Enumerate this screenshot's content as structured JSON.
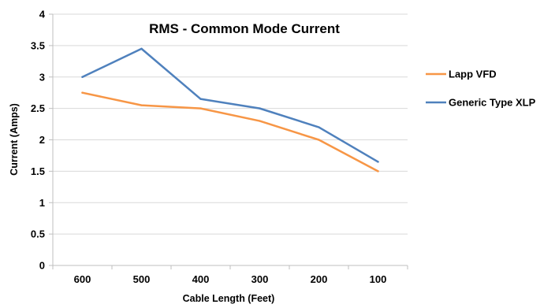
{
  "chart_data": {
    "type": "line",
    "title": "RMS - Common Mode Current",
    "xlabel": "Cable Length (Feet)",
    "ylabel": "Current (Amps)",
    "categories": [
      "600",
      "500",
      "400",
      "300",
      "200",
      "100"
    ],
    "ylim": [
      0,
      4
    ],
    "yticks": [
      "0",
      "0.5",
      "1",
      "1.5",
      "2",
      "2.5",
      "3",
      "3.5",
      "4"
    ],
    "grid": true,
    "legend_position": "right",
    "series": [
      {
        "name": "Lapp VFD",
        "color": "#F79646",
        "values": [
          2.75,
          2.55,
          2.5,
          2.3,
          2.0,
          1.5
        ]
      },
      {
        "name": "Generic Type XLP",
        "color": "#4F81BD",
        "values": [
          3.0,
          3.45,
          2.65,
          2.5,
          2.2,
          1.65
        ]
      }
    ]
  }
}
